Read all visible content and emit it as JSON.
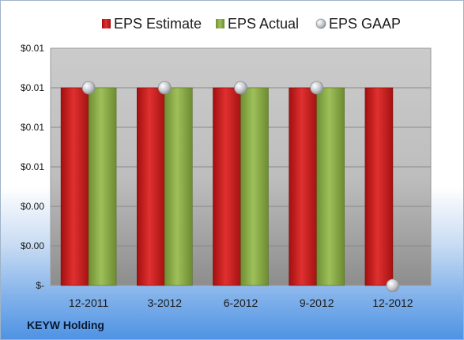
{
  "company": "KEYW Holding",
  "chart_data": {
    "type": "bar",
    "categories": [
      "12-2011",
      "3-2012",
      "6-2012",
      "9-2012",
      "12-2012"
    ],
    "series": [
      {
        "name": "EPS Estimate",
        "kind": "bar",
        "color": "#cc1f1f",
        "values": [
          0.01,
          0.01,
          0.01,
          0.01,
          0.01
        ]
      },
      {
        "name": "EPS Actual",
        "kind": "bar",
        "color": "#8fb04a",
        "values": [
          0.01,
          0.01,
          0.01,
          0.01,
          null
        ]
      },
      {
        "name": "EPS GAAP",
        "kind": "marker",
        "color": "#b9bcc2",
        "values": [
          0.01,
          0.01,
          0.01,
          0.01,
          0
        ]
      }
    ],
    "y_ticks": [
      "$-",
      "$0.00",
      "$0.00",
      "$0.01",
      "$0.01",
      "$0.01",
      "$0.01"
    ],
    "ylim": [
      0,
      0.012
    ],
    "grid": true,
    "legend_position": "top"
  }
}
